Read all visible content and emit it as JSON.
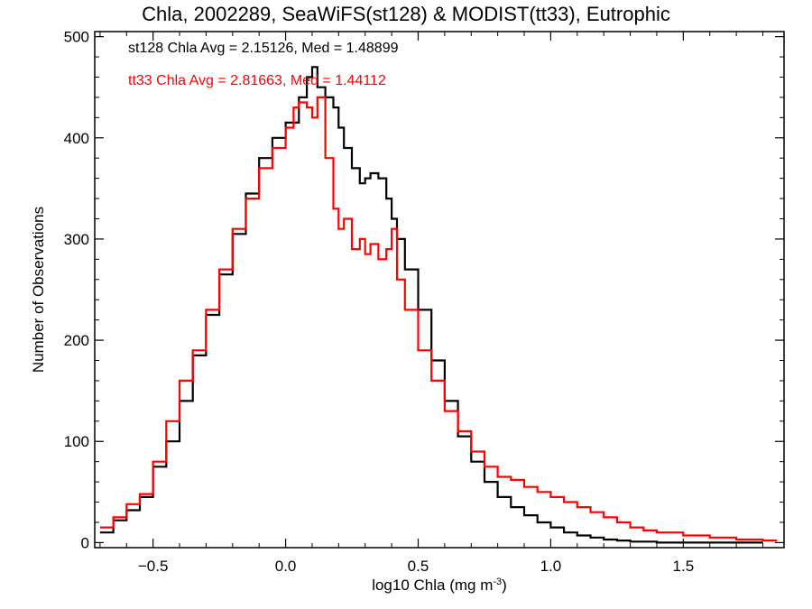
{
  "chart_data": {
    "type": "line",
    "title": "Chla, 2002289, SeaWiFS(st128) & MODIST(tt33), Eutrophic",
    "xlabel": "log10 Chla (mg m",
    "xlabel_sup": "-3",
    "xlabel_end": ")",
    "ylabel": "Number of Observations",
    "xlim": [
      -0.72,
      1.88
    ],
    "ylim": [
      -5,
      505
    ],
    "xticks": [
      -0.5,
      0.0,
      0.5,
      1.0,
      1.5
    ],
    "xtick_labels": [
      "−0.5",
      "0.0",
      "0.5",
      "1.0",
      "1.5"
    ],
    "yticks": [
      0,
      100,
      200,
      300,
      400,
      500
    ],
    "ytick_labels": [
      "0",
      "100",
      "200",
      "300",
      "400",
      "500"
    ],
    "grid": false,
    "legend": "none",
    "annotations": [
      {
        "text": "st128 Chla Avg = 2.15126, Med = 1.48899",
        "color": "#000000"
      },
      {
        "text": "tt33 Chla Avg = 2.81663, Med = 1.44112",
        "color": "#ff0000"
      }
    ],
    "series": [
      {
        "color": "#000000",
        "x": [
          -0.7,
          -0.65,
          -0.6,
          -0.55,
          -0.5,
          -0.45,
          -0.4,
          -0.35,
          -0.3,
          -0.25,
          -0.2,
          -0.15,
          -0.1,
          -0.05,
          0.0,
          0.05,
          0.08,
          0.1,
          0.12,
          0.15,
          0.18,
          0.2,
          0.22,
          0.25,
          0.28,
          0.3,
          0.32,
          0.35,
          0.38,
          0.4,
          0.42,
          0.45,
          0.5,
          0.55,
          0.6,
          0.65,
          0.7,
          0.75,
          0.8,
          0.85,
          0.9,
          0.95,
          1.0,
          1.05,
          1.1,
          1.15,
          1.2,
          1.25,
          1.3,
          1.4,
          1.5,
          1.6,
          1.7,
          1.8
        ],
        "y": [
          10,
          22,
          32,
          45,
          75,
          100,
          140,
          185,
          225,
          265,
          305,
          345,
          380,
          400,
          415,
          440,
          460,
          470,
          450,
          440,
          430,
          410,
          390,
          370,
          355,
          360,
          365,
          360,
          340,
          320,
          300,
          270,
          230,
          180,
          140,
          105,
          80,
          60,
          45,
          35,
          27,
          20,
          15,
          10,
          7,
          5,
          3,
          2,
          1,
          0,
          0,
          0,
          0,
          0
        ]
      },
      {
        "color": "#ff0000",
        "x": [
          -0.7,
          -0.65,
          -0.6,
          -0.55,
          -0.5,
          -0.45,
          -0.4,
          -0.35,
          -0.3,
          -0.25,
          -0.2,
          -0.15,
          -0.1,
          -0.05,
          0.0,
          0.03,
          0.05,
          0.08,
          0.1,
          0.12,
          0.15,
          0.18,
          0.2,
          0.22,
          0.25,
          0.28,
          0.3,
          0.32,
          0.35,
          0.38,
          0.4,
          0.42,
          0.45,
          0.5,
          0.55,
          0.6,
          0.65,
          0.7,
          0.75,
          0.8,
          0.85,
          0.9,
          0.95,
          1.0,
          1.05,
          1.1,
          1.15,
          1.2,
          1.25,
          1.3,
          1.35,
          1.4,
          1.5,
          1.6,
          1.7,
          1.8,
          1.85
        ],
        "y": [
          15,
          25,
          38,
          48,
          80,
          120,
          160,
          190,
          230,
          270,
          310,
          340,
          370,
          390,
          410,
          430,
          435,
          430,
          420,
          440,
          380,
          330,
          310,
          320,
          290,
          300,
          285,
          295,
          280,
          290,
          310,
          260,
          230,
          190,
          160,
          130,
          110,
          90,
          75,
          65,
          62,
          55,
          50,
          45,
          40,
          35,
          30,
          25,
          20,
          15,
          12,
          10,
          7,
          5,
          3,
          2,
          1
        ]
      }
    ]
  }
}
